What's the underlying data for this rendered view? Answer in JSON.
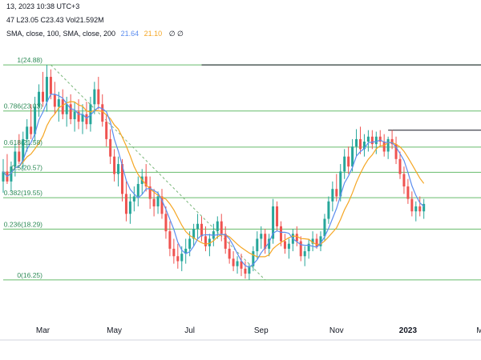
{
  "header": {
    "line1": "13, 2023 10:38 UTC+3",
    "line2_prefix": "47  L23.05  C23.43  Vol21.592M",
    "line3_prefix": "SMA, close, 100, SMA, close, 200",
    "sma100_value": "21.64",
    "sma200_value": "21.10",
    "trailing": "∅  ∅"
  },
  "colors": {
    "up": "#26a69a",
    "down": "#ef5350",
    "sma100": "#5b8def",
    "sma200": "#f5a623",
    "fib": "#4caf50",
    "trend": "#7cb87c",
    "resistance": "#131722",
    "axis_line": "#d1d4dc"
  },
  "chart_data": {
    "type": "candlestick",
    "x_ticks": [
      {
        "label": "Mar",
        "index": 10,
        "bold": false
      },
      {
        "label": "May",
        "index": 28,
        "bold": false
      },
      {
        "label": "Jul",
        "index": 47,
        "bold": false
      },
      {
        "label": "Sep",
        "index": 65,
        "bold": false
      },
      {
        "label": "Nov",
        "index": 84,
        "bold": false
      },
      {
        "label": "2023",
        "index": 102,
        "bold": true
      },
      {
        "label": "Mar",
        "index": 121,
        "bold": false
      }
    ],
    "y_range": [
      14.8,
      26.2
    ],
    "fib_levels": [
      {
        "label": "1(24.88)",
        "value": 24.88
      },
      {
        "label": "0.786(23.03)",
        "value": 23.03
      },
      {
        "label": "0.618(21.58)",
        "value": 21.58
      },
      {
        "label": "0.5(20.57)",
        "value": 20.57
      },
      {
        "label": "0.382(19.55)",
        "value": 19.55
      },
      {
        "label": "0.236(18.29)",
        "value": 18.29
      },
      {
        "label": "0(16.25)",
        "value": 16.25
      }
    ],
    "fib_start_index": 0,
    "fib_end_index": 130,
    "resistance_lines": [
      {
        "start_index": 50,
        "end_index": 130,
        "value": 24.88
      },
      {
        "start_index": 97,
        "end_index": 130,
        "value": 22.26
      }
    ],
    "trend_line": {
      "start_index": 12,
      "start_value": 24.88,
      "end_index": 66,
      "end_value": 16.25
    },
    "candles": [
      [
        20.2,
        21.1,
        19.75,
        20.6
      ],
      [
        20.6,
        21.3,
        20.1,
        20.2
      ],
      [
        20.2,
        21.0,
        19.8,
        20.8
      ],
      [
        20.8,
        21.7,
        20.4,
        21.4
      ],
      [
        21.4,
        22.1,
        20.9,
        21.0
      ],
      [
        21.0,
        22.2,
        20.7,
        21.9
      ],
      [
        21.9,
        22.7,
        21.4,
        22.4
      ],
      [
        22.4,
        23.3,
        21.9,
        22.1
      ],
      [
        22.1,
        23.6,
        21.8,
        23.2
      ],
      [
        23.2,
        24.1,
        22.8,
        23.8
      ],
      [
        23.8,
        24.6,
        23.2,
        23.4
      ],
      [
        23.4,
        24.88,
        23.0,
        24.4
      ],
      [
        24.4,
        24.7,
        23.5,
        23.7
      ],
      [
        23.7,
        24.2,
        22.9,
        23.2
      ],
      [
        23.2,
        23.8,
        22.6,
        23.5
      ],
      [
        23.5,
        23.9,
        22.7,
        22.9
      ],
      [
        22.9,
        23.6,
        22.4,
        23.3
      ],
      [
        23.3,
        23.7,
        22.5,
        22.7
      ],
      [
        22.7,
        23.4,
        22.2,
        23.0
      ],
      [
        23.0,
        23.5,
        22.3,
        22.6
      ],
      [
        22.6,
        23.3,
        22.1,
        22.9
      ],
      [
        22.9,
        23.4,
        22.3,
        22.5
      ],
      [
        22.5,
        23.6,
        22.2,
        23.3
      ],
      [
        23.3,
        24.2,
        22.9,
        23.9
      ],
      [
        23.9,
        24.4,
        23.1,
        23.3
      ],
      [
        23.3,
        23.7,
        22.4,
        22.6
      ],
      [
        22.6,
        22.9,
        21.6,
        21.9
      ],
      [
        21.9,
        22.3,
        20.9,
        21.2
      ],
      [
        21.2,
        21.5,
        20.2,
        20.5
      ],
      [
        20.5,
        21.2,
        20.0,
        20.9
      ],
      [
        20.9,
        21.1,
        19.4,
        19.7
      ],
      [
        19.7,
        20.2,
        18.6,
        18.9
      ],
      [
        18.9,
        19.7,
        18.5,
        19.4
      ],
      [
        19.4,
        20.0,
        19.0,
        19.6
      ],
      [
        19.6,
        20.4,
        19.2,
        20.1
      ],
      [
        20.1,
        20.7,
        19.7,
        20.4
      ],
      [
        20.4,
        20.9,
        19.8,
        20.0
      ],
      [
        20.0,
        20.4,
        19.1,
        19.5
      ],
      [
        19.5,
        19.9,
        18.8,
        19.2
      ],
      [
        19.2,
        19.8,
        18.9,
        19.6
      ],
      [
        19.6,
        19.9,
        18.7,
        18.9
      ],
      [
        18.9,
        19.2,
        17.9,
        18.2
      ],
      [
        18.2,
        18.6,
        17.2,
        17.5
      ],
      [
        17.5,
        17.9,
        16.9,
        17.2
      ],
      [
        17.2,
        17.7,
        16.7,
        17.0
      ],
      [
        17.0,
        17.6,
        16.6,
        17.3
      ],
      [
        17.3,
        17.9,
        16.9,
        17.5
      ],
      [
        17.5,
        18.2,
        17.2,
        17.9
      ],
      [
        17.9,
        18.5,
        17.6,
        18.3
      ],
      [
        18.3,
        18.9,
        17.9,
        18.5
      ],
      [
        18.5,
        18.8,
        17.8,
        18.0
      ],
      [
        18.0,
        18.4,
        17.4,
        17.6
      ],
      [
        17.6,
        18.1,
        17.2,
        17.9
      ],
      [
        17.9,
        18.5,
        17.6,
        18.2
      ],
      [
        18.2,
        18.8,
        17.9,
        18.6
      ],
      [
        18.6,
        18.9,
        17.8,
        18.1
      ],
      [
        18.1,
        18.4,
        17.3,
        17.5
      ],
      [
        17.5,
        17.8,
        16.9,
        17.1
      ],
      [
        17.1,
        17.4,
        16.6,
        16.8
      ],
      [
        16.8,
        17.2,
        16.5,
        17.0
      ],
      [
        17.0,
        17.3,
        16.4,
        16.7
      ],
      [
        16.7,
        17.0,
        16.3,
        16.5
      ],
      [
        16.5,
        16.9,
        16.25,
        16.8
      ],
      [
        16.8,
        17.6,
        16.6,
        17.4
      ],
      [
        17.4,
        18.2,
        17.1,
        17.9
      ],
      [
        17.9,
        18.4,
        17.5,
        18.1
      ],
      [
        18.1,
        18.3,
        17.3,
        17.5
      ],
      [
        17.5,
        18.1,
        17.2,
        17.9
      ],
      [
        17.9,
        19.5,
        17.7,
        19.2
      ],
      [
        19.2,
        19.4,
        18.2,
        18.4
      ],
      [
        18.4,
        18.6,
        17.6,
        17.8
      ],
      [
        17.8,
        18.1,
        17.3,
        17.5
      ],
      [
        17.5,
        17.9,
        17.1,
        17.7
      ],
      [
        17.7,
        18.3,
        17.4,
        18.1
      ],
      [
        18.1,
        18.4,
        17.6,
        17.8
      ],
      [
        17.8,
        18.0,
        17.0,
        17.2
      ],
      [
        17.2,
        17.6,
        16.8,
        17.4
      ],
      [
        17.4,
        17.9,
        17.1,
        17.7
      ],
      [
        17.7,
        18.2,
        17.4,
        17.9
      ],
      [
        17.9,
        18.1,
        17.5,
        17.6
      ],
      [
        17.6,
        18.2,
        17.4,
        18.0
      ],
      [
        18.0,
        18.9,
        17.8,
        18.7
      ],
      [
        18.7,
        19.6,
        18.5,
        19.4
      ],
      [
        19.4,
        20.2,
        19.0,
        19.9
      ],
      [
        19.9,
        20.5,
        19.4,
        19.6
      ],
      [
        19.6,
        20.9,
        19.4,
        20.6
      ],
      [
        20.6,
        21.5,
        20.3,
        21.2
      ],
      [
        21.2,
        21.6,
        20.5,
        20.8
      ],
      [
        20.8,
        21.9,
        20.6,
        21.6
      ],
      [
        21.6,
        22.3,
        21.2,
        21.9
      ],
      [
        21.9,
        22.4,
        21.3,
        21.5
      ],
      [
        21.5,
        22.1,
        21.2,
        21.8
      ],
      [
        21.8,
        22.26,
        21.4,
        22.0
      ],
      [
        22.0,
        22.26,
        21.5,
        21.7
      ],
      [
        21.7,
        22.2,
        21.3,
        22.0
      ],
      [
        22.0,
        22.26,
        21.6,
        21.8
      ],
      [
        21.8,
        22.1,
        21.2,
        21.4
      ],
      [
        21.4,
        22.0,
        21.1,
        21.9
      ],
      [
        21.9,
        22.26,
        21.5,
        21.7
      ],
      [
        21.7,
        22.0,
        20.9,
        21.1
      ],
      [
        21.1,
        21.4,
        20.3,
        20.5
      ],
      [
        20.5,
        20.8,
        19.7,
        20.0
      ],
      [
        20.0,
        20.3,
        19.3,
        19.5
      ],
      [
        19.5,
        19.8,
        18.8,
        19.0
      ],
      [
        19.0,
        19.4,
        18.6,
        19.2
      ],
      [
        19.2,
        19.6,
        18.8,
        19.0
      ],
      [
        19.0,
        19.5,
        18.7,
        19.3
      ]
    ]
  }
}
